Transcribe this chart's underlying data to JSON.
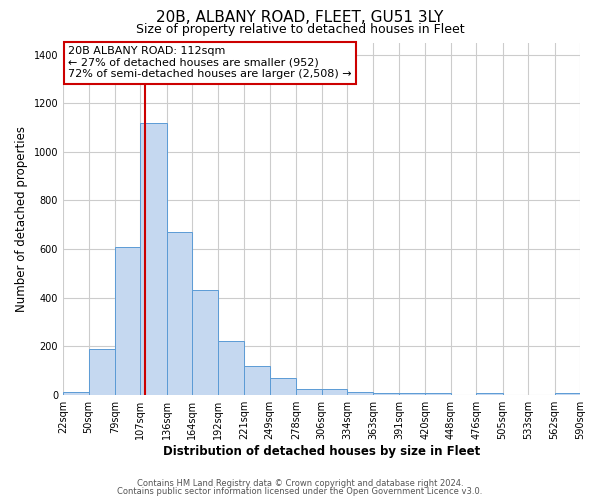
{
  "title_line1": "20B, ALBANY ROAD, FLEET, GU51 3LY",
  "title_line2": "Size of property relative to detached houses in Fleet",
  "xlabel": "Distribution of detached houses by size in Fleet",
  "ylabel": "Number of detached properties",
  "bar_color": "#c5d8f0",
  "bar_edgecolor": "#5b9bd5",
  "background_color": "#ffffff",
  "grid_color": "#cccccc",
  "bin_edges": [
    22,
    50,
    79,
    107,
    136,
    164,
    192,
    221,
    249,
    278,
    306,
    334,
    363,
    391,
    420,
    448,
    476,
    505,
    533,
    562,
    590
  ],
  "bar_heights": [
    10,
    190,
    610,
    1120,
    670,
    430,
    220,
    120,
    70,
    25,
    25,
    10,
    5,
    5,
    5,
    0,
    5,
    0,
    0,
    5
  ],
  "red_line_x": 112,
  "red_line_color": "#cc0000",
  "annotation_line1": "20B ALBANY ROAD: 112sqm",
  "annotation_line2": "← 27% of detached houses are smaller (952)",
  "annotation_line3": "72% of semi-detached houses are larger (2,508) →",
  "annotation_box_edgecolor": "#cc0000",
  "annotation_box_facecolor": "#ffffff",
  "ylim": [
    0,
    1450
  ],
  "yticks": [
    0,
    200,
    400,
    600,
    800,
    1000,
    1200,
    1400
  ],
  "footer_line1": "Contains HM Land Registry data © Crown copyright and database right 2024.",
  "footer_line2": "Contains public sector information licensed under the Open Government Licence v3.0.",
  "title_fontsize": 11,
  "subtitle_fontsize": 9,
  "axis_label_fontsize": 8.5,
  "tick_fontsize": 7,
  "annotation_fontsize": 8,
  "footer_fontsize": 6
}
